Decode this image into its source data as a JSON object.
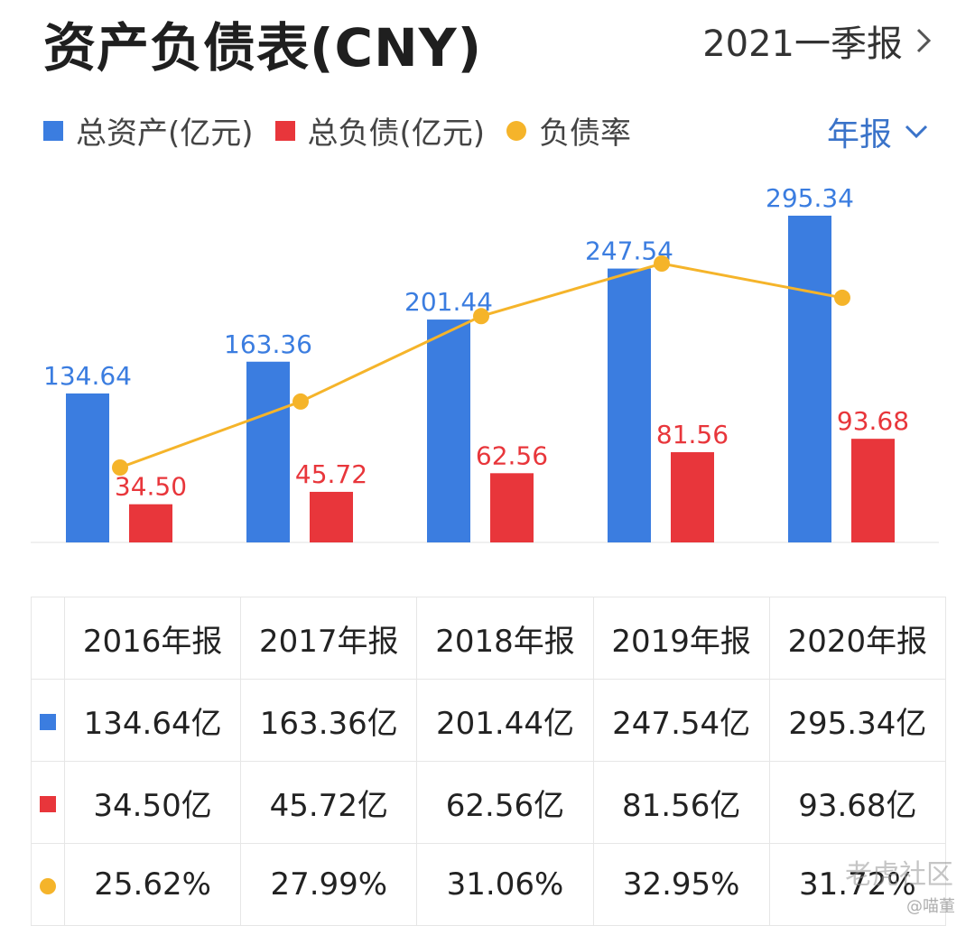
{
  "header": {
    "title": "资产负债表(CNY)",
    "period_label": "2021一季报"
  },
  "legend": {
    "assets_label": "总资产(亿元)",
    "liabilities_label": "总负债(亿元)",
    "ratio_label": "负债率",
    "frequency_label": "年报"
  },
  "colors": {
    "assets": "#3b7de0",
    "liabilities": "#e8363b",
    "ratio": "#f5b42a",
    "frequency": "#3a73c9"
  },
  "chart_data": {
    "type": "bar",
    "title": "资产负债表(CNY)",
    "categories": [
      "2016年报",
      "2017年报",
      "2018年报",
      "2019年报",
      "2020年报"
    ],
    "series": [
      {
        "name": "总资产(亿元)",
        "type": "bar",
        "values": [
          134.64,
          163.36,
          201.44,
          247.54,
          295.34
        ],
        "labels": [
          "134.64",
          "163.36",
          "201.44",
          "247.54",
          "295.34"
        ]
      },
      {
        "name": "总负债(亿元)",
        "type": "bar",
        "values": [
          34.5,
          45.72,
          62.56,
          81.56,
          93.68
        ],
        "labels": [
          "34.50",
          "45.72",
          "62.56",
          "81.56",
          "93.68"
        ]
      },
      {
        "name": "负债率",
        "type": "line",
        "values": [
          25.62,
          27.99,
          31.06,
          32.95,
          31.72
        ],
        "unit": "%"
      }
    ],
    "ylim": [
      0,
      310
    ],
    "ratio_ylim": [
      20,
      35
    ],
    "legend_position": "top-left",
    "grid": false
  },
  "table": {
    "columns": [
      "2016年报",
      "2017年报",
      "2018年报",
      "2019年报",
      "2020年报"
    ],
    "rows": [
      {
        "marker": "assets",
        "cells": [
          "134.64亿",
          "163.36亿",
          "201.44亿",
          "247.54亿",
          "295.34亿"
        ]
      },
      {
        "marker": "liabilities",
        "cells": [
          "34.50亿",
          "45.72亿",
          "62.56亿",
          "81.56亿",
          "93.68亿"
        ]
      },
      {
        "marker": "ratio",
        "cells": [
          "25.62%",
          "27.99%",
          "31.06%",
          "32.95%",
          "31.72%"
        ]
      }
    ]
  },
  "watermark": {
    "line1": "老虎社区",
    "line2": "@喵董"
  }
}
